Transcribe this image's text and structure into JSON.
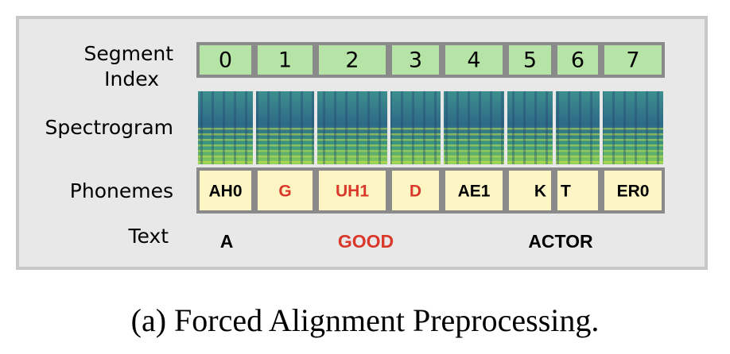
{
  "row_labels": {
    "segment_index": [
      "Segment",
      "Index"
    ],
    "spectrogram": "Spectrogram",
    "phonemes": "Phonemes",
    "text": "Text"
  },
  "segments": [
    {
      "index": "0",
      "phoneme": "AH0",
      "color": "#000000"
    },
    {
      "index": "1",
      "phoneme": "G",
      "color": "#d9382b"
    },
    {
      "index": "2",
      "phoneme": "UH1",
      "color": "#d9382b"
    },
    {
      "index": "3",
      "phoneme": "D",
      "color": "#d9382b"
    },
    {
      "index": "4",
      "phoneme": "AE1",
      "color": "#000000"
    },
    {
      "index": "5",
      "phoneme": "K",
      "color": "#000000"
    },
    {
      "index": "6",
      "phoneme": "T",
      "color": "#000000"
    },
    {
      "index": "7",
      "phoneme": "ER0",
      "color": "#000000"
    }
  ],
  "words": [
    {
      "text": "A",
      "color": "#000000"
    },
    {
      "text": "GOOD",
      "color": "#d9382b"
    },
    {
      "text": "ACTOR",
      "color": "#000000"
    }
  ],
  "caption": "(a) Forced Alignment Preprocessing."
}
